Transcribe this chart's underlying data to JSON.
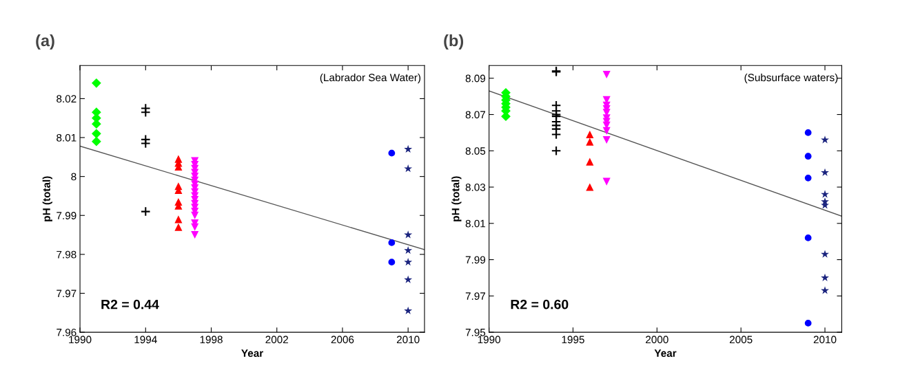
{
  "chart_data": [
    {
      "type": "scatter",
      "title": "(a)",
      "xlabel": "Year",
      "ylabel": "pH (total)",
      "xlim": [
        1990,
        2011
      ],
      "ylim": [
        7.96,
        8.0285
      ],
      "xticks": [
        1990,
        1994,
        1998,
        2002,
        2006,
        2010
      ],
      "yticks": [
        7.96,
        7.97,
        7.98,
        7.99,
        {
          "value": 8.0,
          "label": "8"
        },
        8.01,
        8.02
      ],
      "grid": false,
      "annotations": [
        "(Labrador Sea Water)",
        "R2 = 0.44"
      ],
      "series": [
        {
          "color": "#00ff00",
          "marker": "diamond",
          "x": [
            1991,
            1991,
            1991,
            1991,
            1991,
            1991
          ],
          "values": [
            8.024,
            8.0165,
            8.015,
            8.0135,
            8.011,
            8.009
          ]
        },
        {
          "color": "#000000",
          "marker": "cross",
          "x": [
            1994,
            1994,
            1994,
            1994,
            1994
          ],
          "values": [
            8.0175,
            8.0165,
            8.0095,
            8.0085,
            7.991
          ]
        },
        {
          "color": "#ff0000",
          "marker": "triangle",
          "x": [
            1996,
            1996,
            1996,
            1996,
            1996,
            1996,
            1996,
            1996,
            1996
          ],
          "values": [
            8.0045,
            8.0035,
            8.0025,
            7.9975,
            7.9965,
            7.9935,
            7.9925,
            7.989,
            7.987
          ]
        },
        {
          "color": "#ff00ff",
          "marker": "triangle_down",
          "x": [
            1997,
            1997,
            1997,
            1997,
            1997,
            1997,
            1997,
            1997,
            1997,
            1997,
            1997,
            1997,
            1997,
            1997,
            1997,
            1997,
            1997,
            1997
          ],
          "values": [
            8.004,
            8.003,
            8.002,
            8.001,
            8.0,
            7.999,
            7.998,
            7.997,
            7.996,
            7.995,
            7.994,
            7.993,
            7.992,
            7.991,
            7.99,
            7.988,
            7.987,
            7.985
          ]
        },
        {
          "color": "#0000ff",
          "marker": "circle",
          "x": [
            2009,
            2009,
            2009
          ],
          "values": [
            8.006,
            7.983,
            7.978
          ]
        },
        {
          "color": "#1a237e",
          "marker": "star",
          "x": [
            2010,
            2010,
            2010,
            2010,
            2010,
            2010,
            2010
          ],
          "values": [
            8.007,
            8.002,
            7.985,
            7.981,
            7.978,
            7.9735,
            7.9655
          ]
        },
        {
          "type": "line",
          "color": "#555555",
          "marker": "none",
          "x": [
            1990,
            2011
          ],
          "values": [
            8.0078,
            7.9812
          ]
        }
      ]
    },
    {
      "type": "scatter",
      "title": "(b)",
      "xlabel": "Year",
      "ylabel": "pH (total)",
      "xlim": [
        1990,
        2011
      ],
      "ylim": [
        7.95,
        8.097
      ],
      "xticks": [
        1990,
        1995,
        2000,
        2005,
        2010
      ],
      "yticks": [
        7.95,
        7.97,
        7.99,
        8.01,
        8.03,
        8.05,
        8.07,
        8.09
      ],
      "grid": false,
      "annotations": [
        "(Subsurface waters)",
        "R2 = 0.60"
      ],
      "series": [
        {
          "color": "#00ff00",
          "marker": "diamond",
          "x": [
            1991,
            1991,
            1991,
            1991,
            1991,
            1991,
            1991
          ],
          "values": [
            8.082,
            8.08,
            8.078,
            8.076,
            8.074,
            8.072,
            8.069
          ]
        },
        {
          "color": "#000000",
          "marker": "cross",
          "x": [
            1994,
            1994,
            1994,
            1994,
            1994,
            1994,
            1994,
            1994,
            1994,
            1994,
            1994
          ],
          "values": [
            8.094,
            8.0935,
            8.075,
            8.072,
            8.07,
            8.069,
            8.066,
            8.064,
            8.062,
            8.059,
            8.05
          ]
        },
        {
          "color": "#ff0000",
          "marker": "triangle",
          "x": [
            1996,
            1996,
            1996,
            1996
          ],
          "values": [
            8.059,
            8.055,
            8.044,
            8.03
          ]
        },
        {
          "color": "#ff00ff",
          "marker": "triangle_down",
          "x": [
            1997,
            1997,
            1997,
            1997,
            1997,
            1997,
            1997,
            1997,
            1997,
            1997,
            1997
          ],
          "values": [
            8.092,
            8.078,
            8.075,
            8.073,
            8.071,
            8.068,
            8.066,
            8.064,
            8.061,
            8.056,
            8.033
          ]
        },
        {
          "color": "#0000ff",
          "marker": "circle",
          "x": [
            2009,
            2009,
            2009,
            2009,
            2009
          ],
          "values": [
            8.06,
            8.047,
            8.035,
            8.002,
            7.955
          ]
        },
        {
          "color": "#1a237e",
          "marker": "star",
          "x": [
            2010,
            2010,
            2010,
            2010,
            2010,
            2010,
            2010,
            2010
          ],
          "values": [
            8.056,
            8.038,
            8.026,
            8.022,
            8.02,
            7.993,
            7.98,
            7.973
          ]
        },
        {
          "type": "line",
          "color": "#555555",
          "marker": "none",
          "x": [
            1990,
            2011
          ],
          "values": [
            8.083,
            8.014
          ]
        }
      ]
    }
  ]
}
